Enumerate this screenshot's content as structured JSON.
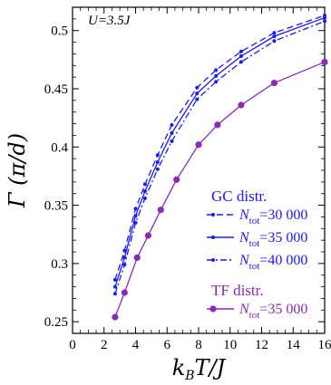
{
  "chart_data": {
    "type": "line",
    "annotation": "U=3.5J",
    "xlabel": "k_B T / J",
    "ylabel": "Γ (π/d)",
    "xlim": [
      0,
      16
    ],
    "ylim": [
      0.24,
      0.52
    ],
    "x_ticks": [
      "0",
      "2",
      "4",
      "6",
      "8",
      "10",
      "12",
      "14",
      "16"
    ],
    "y_ticks": [
      "0.25",
      "0.3",
      "0.35",
      "0.4",
      "0.45",
      "0.5"
    ],
    "grid": false,
    "legend_position": "lower-right",
    "legend_groups": [
      {
        "title": "GC distr.",
        "color": "#1a1aff"
      },
      {
        "title": "TF distr.",
        "color": "#8a2bb5"
      }
    ],
    "series": [
      {
        "label_symbol": "N",
        "label_sub": "tot",
        "label_value": "=30 000",
        "group": "GC distr.",
        "color": "#1a1aff",
        "dash": "7,4",
        "x": [
          2.7,
          3.3,
          4.0,
          4.6,
          5.4,
          6.3,
          7.9,
          9.1,
          10.7,
          12.8,
          16.0
        ],
        "y": [
          0.286,
          0.311,
          0.347,
          0.368,
          0.393,
          0.419,
          0.451,
          0.466,
          0.482,
          0.498,
          0.513
        ]
      },
      {
        "label_symbol": "N",
        "label_sub": "tot",
        "label_value": "=35 000",
        "group": "GC distr.",
        "color": "#1a1aff",
        "dash": "",
        "x": [
          2.7,
          3.3,
          4.0,
          4.6,
          5.4,
          6.3,
          7.9,
          9.1,
          10.7,
          12.8,
          16.0
        ],
        "y": [
          0.28,
          0.305,
          0.341,
          0.362,
          0.387,
          0.412,
          0.446,
          0.461,
          0.478,
          0.495,
          0.511
        ]
      },
      {
        "label_symbol": "N",
        "label_sub": "tot",
        "label_value": "=40 000",
        "group": "GC distr.",
        "color": "#1a1aff",
        "dash": "7,3,2,3",
        "x": [
          2.7,
          3.3,
          4.0,
          4.6,
          5.4,
          6.3,
          7.9,
          9.1,
          10.7,
          12.8,
          16.0
        ],
        "y": [
          0.274,
          0.299,
          0.335,
          0.356,
          0.381,
          0.405,
          0.441,
          0.456,
          0.473,
          0.491,
          0.508
        ]
      },
      {
        "label_symbol": "N",
        "label_sub": "tot",
        "label_value": "=35 000",
        "group": "TF distr.",
        "color": "#8a2bb5",
        "dash": "",
        "x": [
          2.7,
          3.3,
          4.1,
          4.8,
          5.6,
          6.6,
          8.0,
          9.2,
          10.7,
          12.8,
          16.0
        ],
        "y": [
          0.254,
          0.275,
          0.305,
          0.324,
          0.346,
          0.372,
          0.402,
          0.419,
          0.436,
          0.455,
          0.473
        ]
      }
    ]
  }
}
